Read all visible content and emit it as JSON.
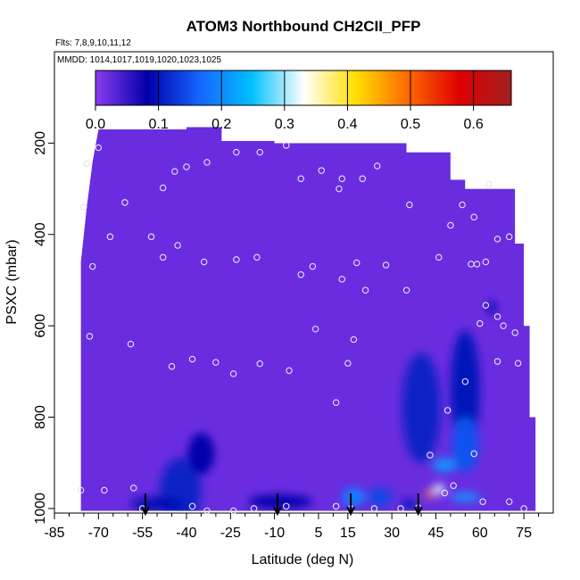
{
  "chart_data": {
    "type": "heatmap",
    "title": "ATOM3 Northbound CH2CII_PFP",
    "flights_label": "Flts: 7,8,9,10,11,12",
    "dates_label": "MMDD: 1014,1017,1019,1020,1023,1025",
    "xlabel": "Latitude (deg N)",
    "ylabel": "PSXC (mbar)",
    "x_ticks": [
      "-85",
      "-70",
      "-55",
      "-40",
      "-25",
      "-10",
      "5",
      "15",
      "30",
      "45",
      "60",
      "75"
    ],
    "y_ticks": [
      "200",
      "400",
      "600",
      "800",
      "1000"
    ],
    "colorbar_ticks": [
      "0.0",
      "0.1",
      "0.2",
      "0.3",
      "0.4",
      "0.5",
      "0.6"
    ],
    "colorbar_range": [
      0,
      0.66
    ],
    "colorbar_colors": [
      "#8a3cf0",
      "#0000a8",
      "#1565ff",
      "#00bfff",
      "#ffffff",
      "#ffe000",
      "#ff6a00",
      "#e00000",
      "#a02020"
    ],
    "background_value": 0.02,
    "xlim": [
      -85,
      85
    ],
    "ylim": [
      1010,
      0
    ],
    "envelope": [
      [
        -76,
        1005
      ],
      [
        -76,
        460
      ],
      [
        -74,
        340
      ],
      [
        -72,
        240
      ],
      [
        -70,
        170
      ],
      [
        -40,
        170
      ],
      [
        -40,
        165
      ],
      [
        -28,
        165
      ],
      [
        -28,
        195
      ],
      [
        -10,
        195
      ],
      [
        -10,
        200
      ],
      [
        35,
        200
      ],
      [
        35,
        220
      ],
      [
        50,
        220
      ],
      [
        50,
        280
      ],
      [
        55,
        280
      ],
      [
        55,
        300
      ],
      [
        72,
        300
      ],
      [
        72,
        420
      ],
      [
        75,
        420
      ],
      [
        75,
        600
      ],
      [
        77,
        600
      ],
      [
        77,
        800
      ],
      [
        79,
        800
      ],
      [
        79,
        1005
      ]
    ],
    "blobs": [
      {
        "lat": -42,
        "p": 960,
        "w": 14,
        "h": 140,
        "value": 0.11
      },
      {
        "lat": -35,
        "p": 880,
        "w": 9,
        "h": 90,
        "value": 0.08
      },
      {
        "lat": -50,
        "p": 990,
        "w": 18,
        "h": 30,
        "value": 0.09
      },
      {
        "lat": -8,
        "p": 985,
        "w": 22,
        "h": 30,
        "value": 0.08
      },
      {
        "lat": 17,
        "p": 975,
        "w": 8,
        "h": 40,
        "value": 0.19
      },
      {
        "lat": 26,
        "p": 975,
        "w": 8,
        "h": 40,
        "value": 0.14
      },
      {
        "lat": 40,
        "p": 780,
        "w": 13,
        "h": 240,
        "value": 0.11
      },
      {
        "lat": 55,
        "p": 740,
        "w": 10,
        "h": 260,
        "value": 0.1
      },
      {
        "lat": 55,
        "p": 860,
        "w": 9,
        "h": 120,
        "value": 0.15
      },
      {
        "lat": 48,
        "p": 905,
        "w": 8,
        "h": 30,
        "value": 0.21
      },
      {
        "lat": 43,
        "p": 968,
        "w": 3,
        "h": 18,
        "value": 0.48
      },
      {
        "lat": 46,
        "p": 958,
        "w": 4,
        "h": 22,
        "value": 0.32
      },
      {
        "lat": 55,
        "p": 975,
        "w": 10,
        "h": 20,
        "value": 0.21
      },
      {
        "lat": 64,
        "p": 560,
        "w": 3,
        "h": 30,
        "value": 0.09
      },
      {
        "lat": 36,
        "p": 990,
        "w": 6,
        "h": 20,
        "value": 0.1
      }
    ],
    "sample_points": [
      [
        -70,
        210
      ],
      [
        -74,
        245
      ],
      [
        -75,
        340
      ],
      [
        -61,
        330
      ],
      [
        -66,
        405
      ],
      [
        -52,
        405
      ],
      [
        -72,
        470
      ],
      [
        -48,
        298
      ],
      [
        -44,
        262
      ],
      [
        -40,
        252
      ],
      [
        -33,
        242
      ],
      [
        -23,
        220
      ],
      [
        -15,
        220
      ],
      [
        -6,
        205
      ],
      [
        -1,
        278
      ],
      [
        6,
        260
      ],
      [
        12,
        300
      ],
      [
        13,
        278
      ],
      [
        20,
        278
      ],
      [
        25,
        250
      ],
      [
        36,
        335
      ],
      [
        54,
        335
      ],
      [
        58,
        362
      ],
      [
        63,
        290
      ],
      [
        50,
        380
      ],
      [
        66,
        410
      ],
      [
        70,
        405
      ],
      [
        62,
        460
      ],
      [
        35,
        522
      ],
      [
        21,
        522
      ],
      [
        -43,
        424
      ],
      [
        -48,
        450
      ],
      [
        -34,
        460
      ],
      [
        -23,
        455
      ],
      [
        -16,
        450
      ],
      [
        -1,
        488
      ],
      [
        3,
        470
      ],
      [
        13,
        498
      ],
      [
        18,
        462
      ],
      [
        28,
        467
      ],
      [
        46,
        450
      ],
      [
        57,
        465
      ],
      [
        59,
        465
      ],
      [
        -73,
        623
      ],
      [
        -59,
        640
      ],
      [
        -45,
        689
      ],
      [
        -38,
        673
      ],
      [
        -30,
        680
      ],
      [
        -24,
        705
      ],
      [
        -15,
        683
      ],
      [
        -5,
        698
      ],
      [
        4,
        607
      ],
      [
        17,
        630
      ],
      [
        15,
        682
      ],
      [
        62,
        555
      ],
      [
        66,
        580
      ],
      [
        60,
        595
      ],
      [
        68,
        600
      ],
      [
        72,
        615
      ],
      [
        66,
        678
      ],
      [
        73,
        682
      ],
      [
        55,
        722
      ],
      [
        11,
        768
      ],
      [
        49,
        785
      ],
      [
        58,
        880
      ],
      [
        43,
        883
      ],
      [
        51,
        950
      ],
      [
        -76,
        960
      ],
      [
        -68,
        960
      ],
      [
        -58,
        955
      ],
      [
        -55,
        1000
      ],
      [
        -38,
        995
      ],
      [
        -33,
        1005
      ],
      [
        -24,
        1005
      ],
      [
        -17,
        1000
      ],
      [
        -6,
        995
      ],
      [
        11,
        995
      ],
      [
        16,
        1000
      ],
      [
        24,
        1000
      ],
      [
        33,
        1000
      ],
      [
        39,
        998
      ],
      [
        48,
        966
      ],
      [
        61,
        985
      ],
      [
        70,
        985
      ],
      [
        75,
        1000
      ]
    ],
    "surface_arrows": [
      -54,
      -9,
      16,
      39
    ]
  }
}
